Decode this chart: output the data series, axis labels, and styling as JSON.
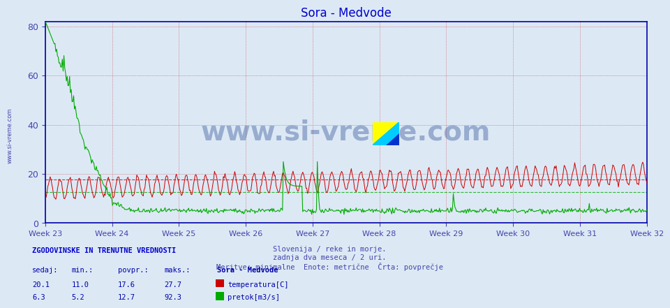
{
  "title": "Sora - Medvode",
  "title_color": "#0000cc",
  "bg_color": "#dce9f5",
  "plot_bg_color": "#dce9f5",
  "xlabel_text": "Slovenija / reke in morje.\nzadnja dva meseca / 2 uri.\nMeritve: minimalne  Enote: metrične  Črta: povprečje",
  "xlabel_color": "#4444aa",
  "ylabel_color": "#4444aa",
  "yticks": [
    0,
    20,
    40,
    60,
    80
  ],
  "ylim": [
    0,
    82
  ],
  "temp_avg": 17.6,
  "flow_avg": 12.7,
  "temp_color": "#cc0000",
  "flow_color": "#00aa00",
  "watermark": "www.si-vreme.com",
  "watermark_color": "#1a3a8a",
  "week_labels": [
    "Week 23",
    "Week 24",
    "Week 25",
    "Week 26",
    "Week 27",
    "Week 28",
    "Week 29",
    "Week 30",
    "Week 31",
    "Week 32"
  ],
  "n_points": 744,
  "bottom_text1": "ZGODOVINSKE IN TRENUTNE VREDNOSTI",
  "bottom_headers": [
    "sedaj:",
    "min.:",
    "povpr.:",
    "maks.:"
  ],
  "temp_values": [
    20.1,
    11.0,
    17.6,
    27.7
  ],
  "flow_values": [
    6.3,
    5.2,
    12.7,
    92.3
  ],
  "legend_temp": "temperatura[C]",
  "legend_flow": "pretok[m3/s]",
  "location_label": "Sora - Medvode"
}
